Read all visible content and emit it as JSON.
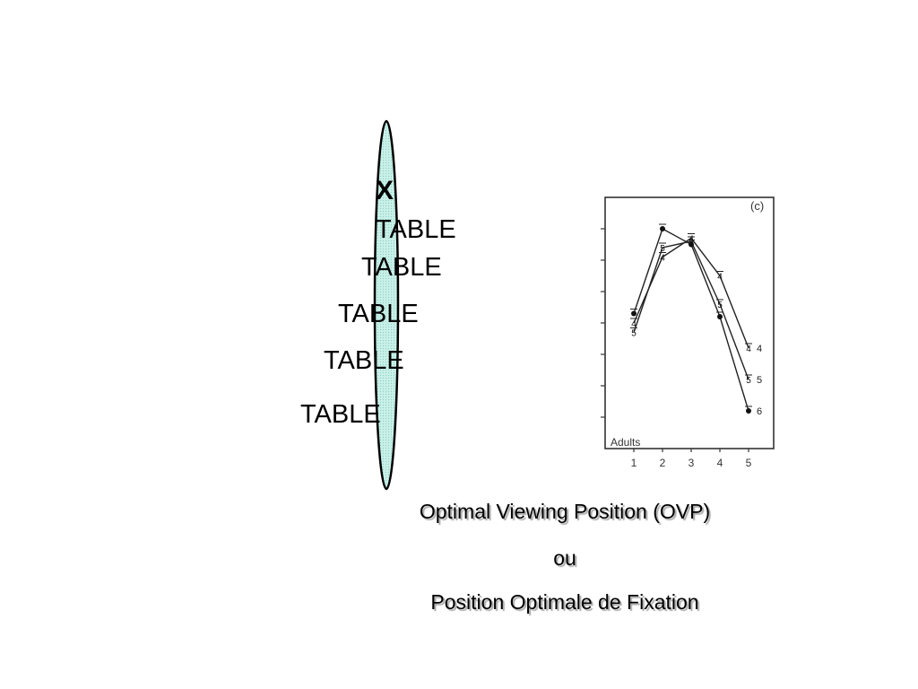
{
  "diagram": {
    "fixation_mark": "X",
    "words": [
      "TABLE",
      "TABLE",
      "TABLE",
      "TABLE",
      "TABLE"
    ],
    "ellipse_fill": "#c8f0e8",
    "ellipse_stroke": "#000000"
  },
  "captions": {
    "line1": "Optimal Viewing Position (OVP)",
    "line2": "ou",
    "line3": "Position Optimale de Fixation"
  },
  "chart_data": {
    "type": "line",
    "panel_label": "(c)",
    "group_label": "Adults",
    "categories": [
      "1",
      "2",
      "3",
      "4",
      "5"
    ],
    "xticklabels": [
      "1",
      "2",
      "3",
      "4",
      "5"
    ],
    "ylim": [
      0,
      8
    ],
    "grid": false,
    "legend": "end-of-line labels",
    "series": [
      {
        "name": "4",
        "marker": "4",
        "values": [
          4.0,
          6.1,
          6.7,
          5.5,
          3.2
        ]
      },
      {
        "name": "5",
        "marker": "5",
        "values": [
          3.7,
          6.4,
          6.6,
          4.6,
          2.2
        ]
      },
      {
        "name": "6",
        "marker": "dot",
        "values": [
          4.3,
          7.0,
          6.5,
          4.2,
          1.2
        ]
      }
    ]
  }
}
